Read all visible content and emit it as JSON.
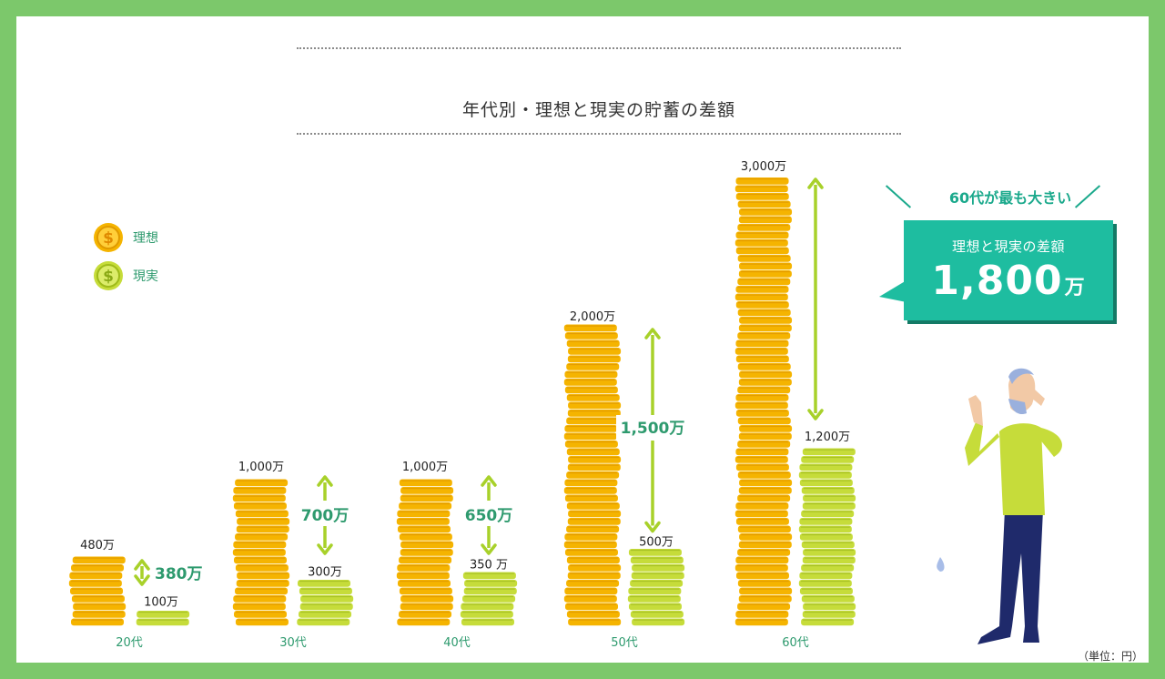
{
  "title": "年代別・理想と現実の貯蓄の差額",
  "legend": [
    {
      "label": "理想",
      "icon": "gold-coin-icon",
      "color": "#f5b400"
    },
    {
      "label": "現実",
      "icon": "green-coin-icon",
      "color": "#c6dc3a"
    }
  ],
  "unit_note": "（単位：円）",
  "callout": {
    "headline": "60代が最も大きい",
    "label": "理想と現実の差額",
    "value": "1,800",
    "unit": "万"
  },
  "colors": {
    "frame": "#7cc86b",
    "ideal": "#f5b400",
    "actual": "#c6dc3a",
    "arrow": "#a8d12a",
    "accent": "#1ebda0",
    "text_green": "#2e9a6e"
  },
  "chart_data": {
    "type": "bar",
    "categories": [
      "20代",
      "30代",
      "40代",
      "50代",
      "60代"
    ],
    "series": [
      {
        "name": "理想",
        "values": [
          480,
          1000,
          1000,
          2000,
          3000
        ]
      },
      {
        "name": "現実",
        "values": [
          100,
          300,
          350,
          500,
          1200
        ]
      }
    ],
    "ideal_labels": [
      "480万",
      "1,000万",
      "1,000万",
      "2,000万",
      "3,000万"
    ],
    "actual_labels": [
      "100万",
      "300万",
      "350 万",
      "500万",
      "1,200万"
    ],
    "differences": [
      380,
      700,
      650,
      1500,
      1800
    ],
    "difference_labels": [
      "380万",
      "700万",
      "650万",
      "1,500万",
      ""
    ],
    "ylim": [
      0,
      3000
    ]
  }
}
